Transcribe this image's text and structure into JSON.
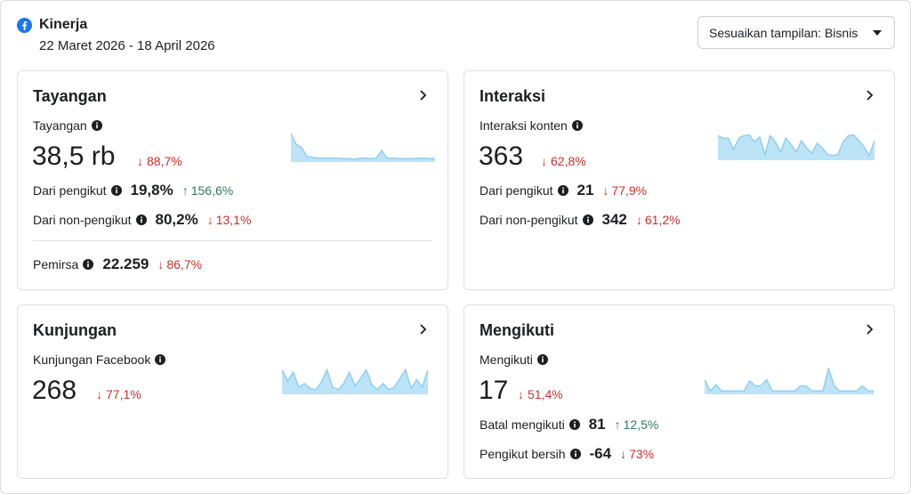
{
  "header": {
    "title": "Kinerja",
    "date_range": "22 Maret 2026 - 18 April 2026",
    "view_button": "Sesuaikan tampilan: Bisnis",
    "brand_color": "#1877f2"
  },
  "cards": {
    "tayangan": {
      "title": "Tayangan",
      "metric_label": "Tayangan",
      "value": "38,5 rb",
      "delta": "88,7%",
      "delta_dir": "down",
      "sub": [
        {
          "label": "Dari pengikut",
          "value": "19,8%",
          "delta": "156,6%",
          "dir": "up"
        },
        {
          "label": "Dari non-pengikut",
          "value": "80,2%",
          "delta": "13,1%",
          "dir": "down"
        }
      ],
      "extra": {
        "label": "Pemirsa",
        "value": "22.259",
        "delta": "86,7%",
        "dir": "down"
      },
      "spark": [
        0.9,
        0.55,
        0.45,
        0.15,
        0.12,
        0.1,
        0.1,
        0.1,
        0.1,
        0.1,
        0.08,
        0.08,
        0.06,
        0.1,
        0.1,
        0.08,
        0.1,
        0.35,
        0.1,
        0.1,
        0.08,
        0.08,
        0.08,
        0.08,
        0.1,
        0.1,
        0.08,
        0.08
      ]
    },
    "interaksi": {
      "title": "Interaksi",
      "metric_label": "Interaksi konten",
      "value": "363",
      "delta": "62,8%",
      "delta_dir": "down",
      "sub": [
        {
          "label": "Dari pengikut",
          "value": "21",
          "delta": "77,9%",
          "dir": "down"
        },
        {
          "label": "Dari non-pengikut",
          "value": "342",
          "delta": "61,2%",
          "dir": "down"
        }
      ],
      "spark": [
        0.95,
        0.85,
        0.85,
        0.4,
        0.85,
        0.95,
        0.98,
        0.7,
        0.9,
        0.2,
        0.95,
        0.7,
        0.3,
        0.85,
        0.6,
        0.3,
        0.75,
        0.45,
        0.25,
        0.65,
        0.45,
        0.2,
        0.15,
        0.2,
        0.7,
        0.95,
        0.98,
        0.75,
        0.5,
        0.15,
        0.75
      ]
    },
    "kunjungan": {
      "title": "Kunjungan",
      "metric_label": "Kunjungan Facebook",
      "value": "268",
      "delta": "77,1%",
      "delta_dir": "down",
      "spark": [
        0.95,
        0.5,
        0.85,
        0.25,
        0.4,
        0.2,
        0.15,
        0.45,
        0.95,
        0.25,
        0.15,
        0.4,
        0.85,
        0.3,
        0.6,
        0.95,
        0.35,
        0.15,
        0.4,
        0.15,
        0.25,
        0.6,
        0.95,
        0.2,
        0.55,
        0.25,
        0.95
      ]
    },
    "mengikuti": {
      "title": "Mengikuti",
      "metric_label": "Mengikuti",
      "value": "17",
      "delta": "51,4%",
      "delta_dir": "down",
      "sub": [
        {
          "label": "Batal mengikuti",
          "value": "81",
          "delta": "12,5%",
          "dir": "up"
        },
        {
          "label": "Pengikut bersih",
          "value": "-64",
          "delta": "73%",
          "dir": "down"
        }
      ],
      "spark": [
        0.55,
        0.1,
        0.35,
        0.1,
        0.1,
        0.1,
        0.1,
        0.1,
        0.5,
        0.3,
        0.3,
        0.55,
        0.1,
        0.1,
        0.1,
        0.1,
        0.1,
        0.3,
        0.3,
        0.1,
        0.1,
        0.1,
        1.0,
        0.3,
        0.1,
        0.1,
        0.1,
        0.1,
        0.3,
        0.1,
        0.1
      ]
    }
  }
}
